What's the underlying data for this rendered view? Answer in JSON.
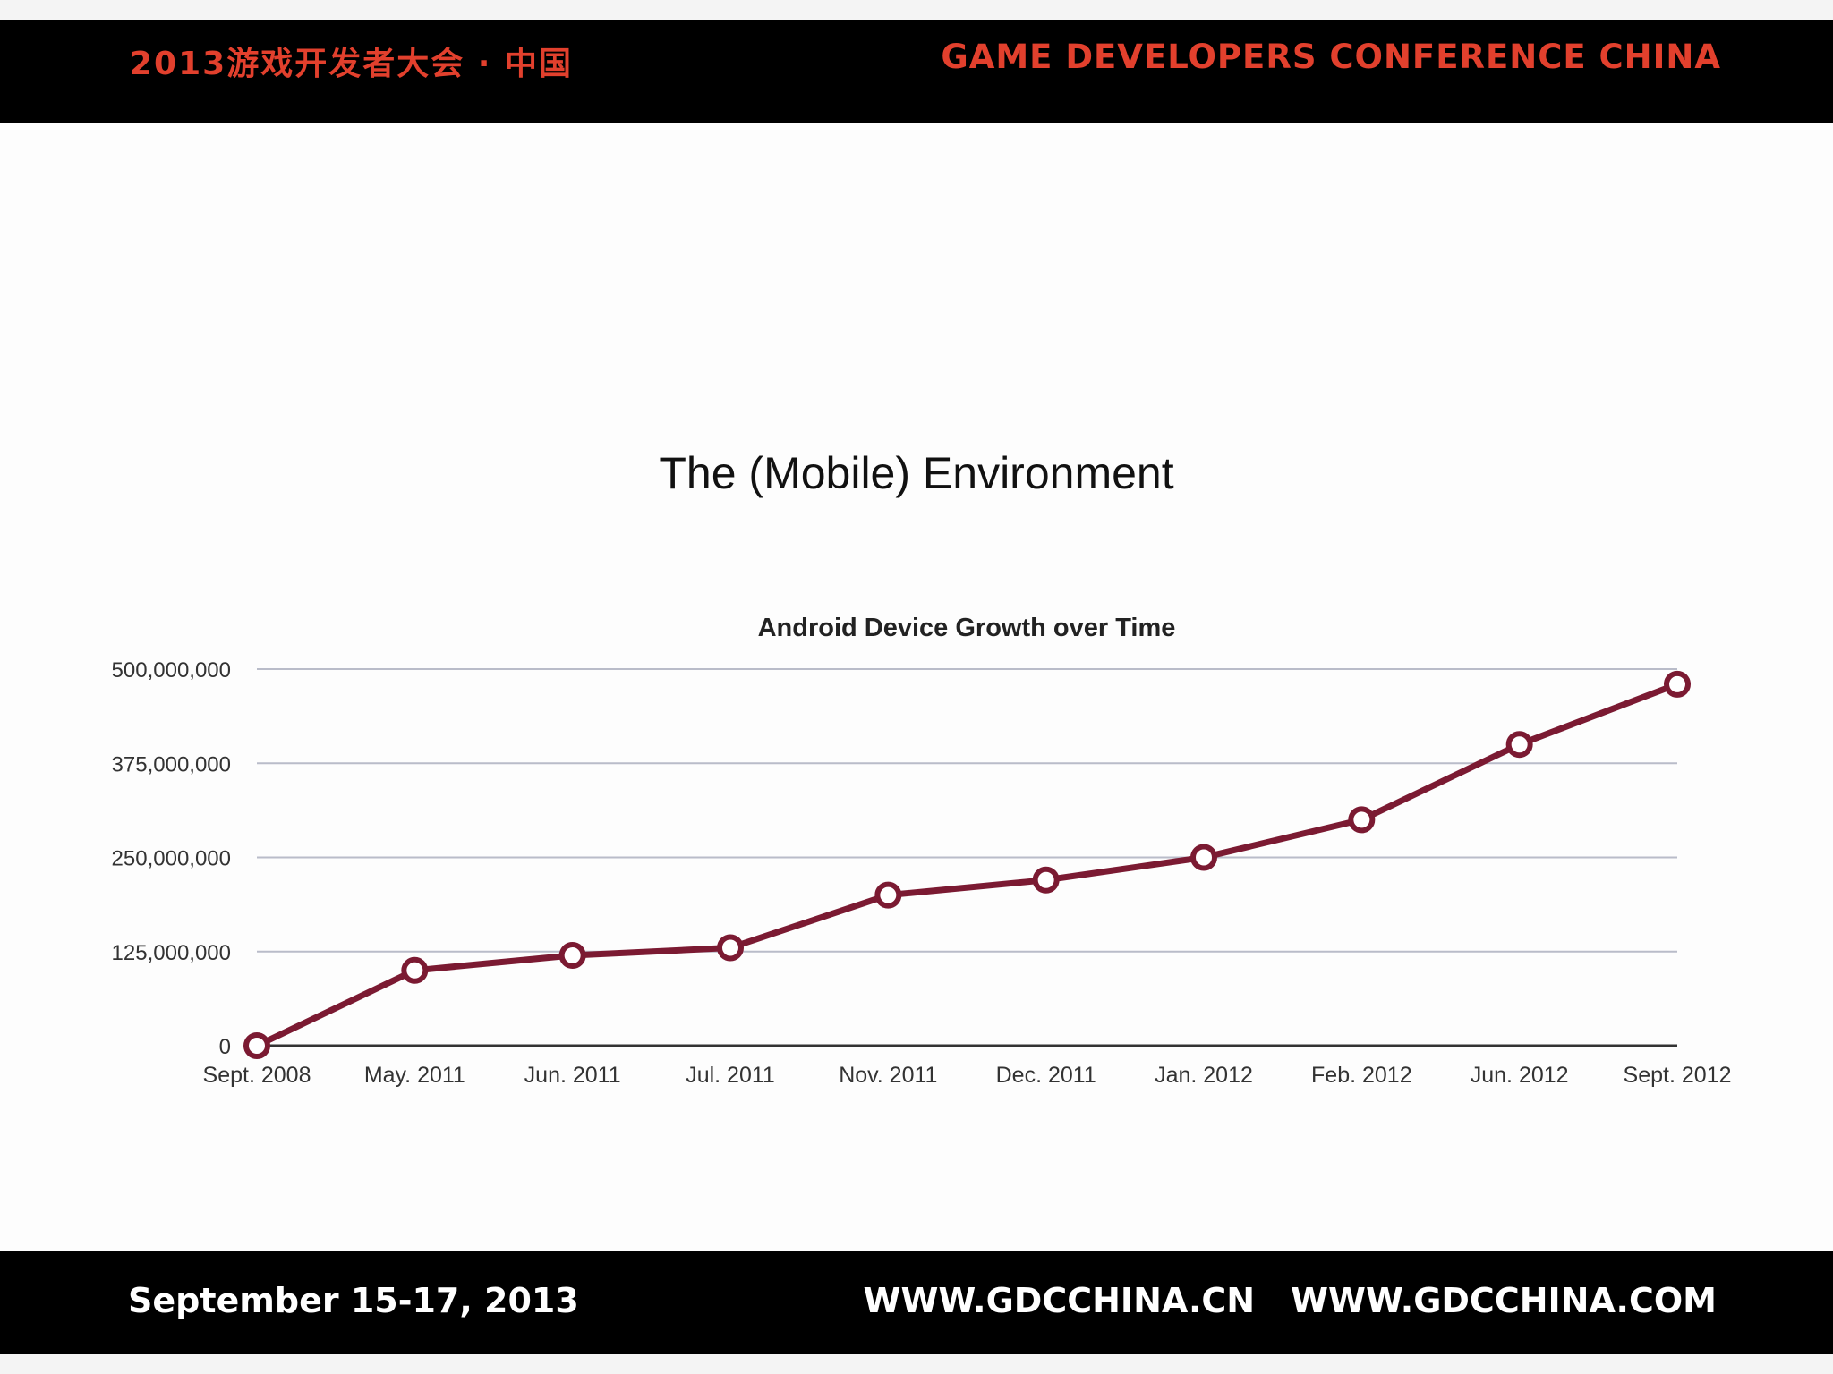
{
  "header": {
    "left_text": "2013游戏开发者大会 · 中国",
    "right_text": "GAME DEVELOPERS CONFERENCE CHINA"
  },
  "slide": {
    "title": "The (Mobile) Environment"
  },
  "footer": {
    "date_text": "September 15-17, 2013",
    "url_cn": "WWW.GDCCHINA.CN",
    "url_com": "WWW.GDCCHINA.COM"
  },
  "colors": {
    "accent": "#e2402d",
    "line": "#7b1a32",
    "grid": "#b9bcc9"
  },
  "chart_data": {
    "type": "line",
    "title": "Android Device Growth over Time",
    "xlabel": "",
    "ylabel": "",
    "categories": [
      "Sept. 2008",
      "May. 2011",
      "Jun. 2011",
      "Jul. 2011",
      "Nov. 2011",
      "Dec. 2011",
      "Jan. 2012",
      "Feb. 2012",
      "Jun. 2012",
      "Sept. 2012"
    ],
    "series": [
      {
        "values": [
          0,
          100000000,
          120000000,
          130000000,
          200000000,
          220000000,
          250000000,
          300000000,
          400000000,
          480000000
        ]
      }
    ],
    "ylim": [
      0,
      500000000
    ],
    "yticks": [
      0,
      125000000,
      250000000,
      375000000,
      500000000
    ],
    "ytick_labels": [
      "0",
      "125,000,000",
      "250,000,000",
      "375,000,000",
      "500,000,000"
    ],
    "grid": true,
    "legend": "none"
  }
}
